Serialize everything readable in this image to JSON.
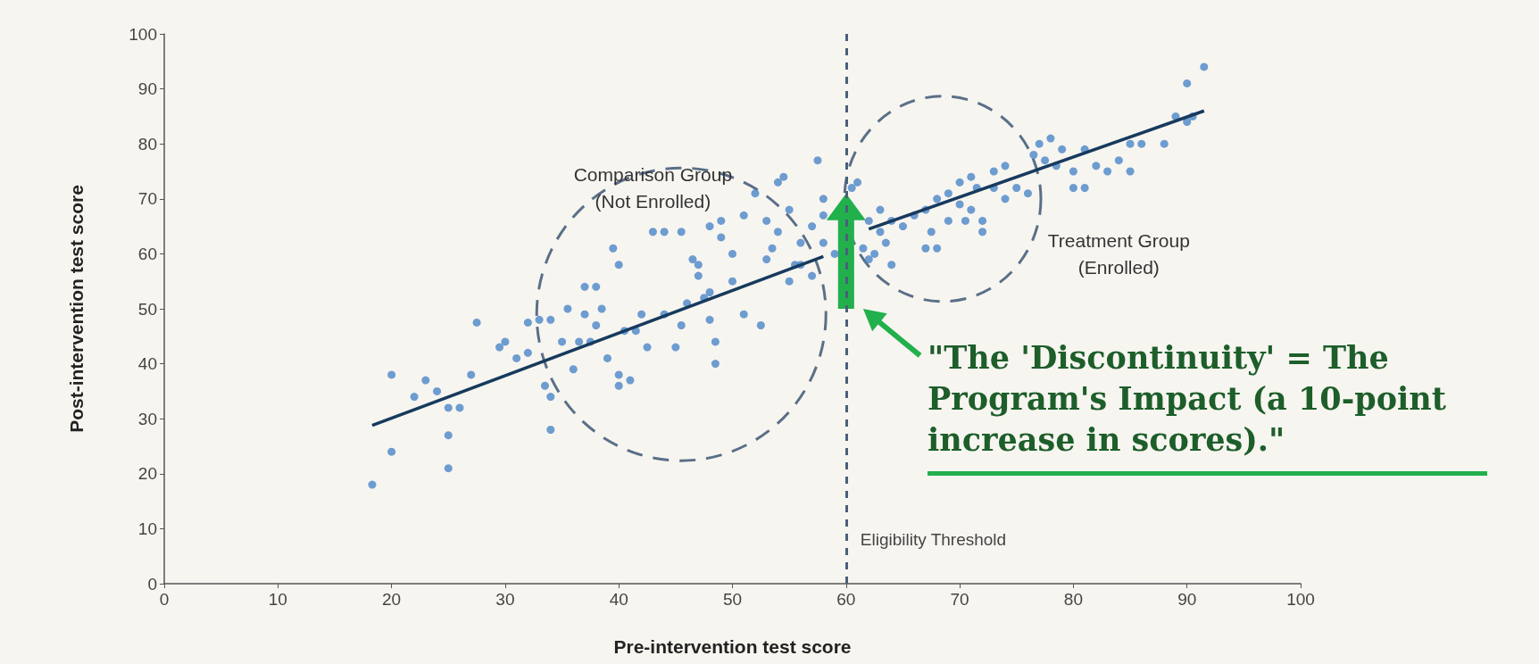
{
  "chart_data": {
    "type": "scatter",
    "xlabel": "Pre-intervention test score",
    "ylabel": "Post-intervention test score",
    "xlim": [
      0,
      100
    ],
    "xticks": [
      0,
      10,
      20,
      30,
      40,
      50,
      60,
      70,
      80,
      90,
      100
    ],
    "ylim": [
      0,
      100
    ],
    "yticks": [
      0,
      10,
      20,
      30,
      40,
      50,
      60,
      70,
      80,
      90,
      100
    ],
    "grid": false,
    "marker": "circle",
    "series": [
      {
        "color": "#4a86c8",
        "x": [
          18.3,
          20,
          20,
          22,
          23,
          24,
          25,
          25,
          25,
          26,
          27,
          27.5,
          29.5,
          30,
          31,
          32,
          32,
          33,
          33.5,
          34,
          34,
          34,
          35,
          35.5,
          36,
          36.5,
          37,
          37,
          37.5,
          38,
          38,
          38.5,
          39,
          39.5,
          40,
          40,
          40,
          40.5,
          41,
          41.5,
          42,
          42.5,
          43,
          44,
          44,
          45,
          45.5,
          45.5,
          46,
          46.5,
          47,
          47,
          47.5,
          48,
          48,
          48,
          48.5,
          48.5,
          49,
          49,
          50,
          50,
          51,
          51,
          52,
          52.5,
          53,
          53,
          53.5,
          54,
          54,
          54.5,
          55,
          55,
          55.5,
          56,
          56,
          57,
          57,
          57.5,
          58,
          58,
          59,
          58
        ],
        "values": [
          18,
          38,
          24,
          34,
          37,
          35,
          32,
          27,
          21,
          32,
          38,
          47.5,
          43,
          44,
          41,
          42,
          47.5,
          48,
          36,
          34,
          28,
          48,
          44,
          50,
          39,
          44,
          49,
          54,
          44,
          47,
          54,
          50,
          41,
          61,
          36,
          38,
          58,
          46,
          37,
          46,
          49,
          43,
          64,
          64,
          49,
          43,
          64,
          47,
          51,
          59,
          58,
          56,
          52,
          53,
          65,
          48,
          44,
          40,
          63,
          66,
          55,
          60,
          67,
          49,
          71,
          47,
          59,
          66,
          61,
          64,
          73,
          74,
          68,
          55,
          58,
          58,
          62,
          65,
          56,
          77,
          70,
          62,
          60,
          67
        ]
      },
      {
        "color": "#4a86c8",
        "x": [
          60.5,
          61,
          61.5,
          62,
          62,
          62.5,
          63,
          63,
          63.5,
          64,
          64,
          65,
          66,
          67,
          67,
          67.5,
          68,
          68,
          69,
          69,
          70,
          70,
          70.5,
          71,
          71,
          71.5,
          72,
          72,
          73,
          73,
          74,
          74,
          75,
          76,
          76.5,
          77,
          77.5,
          78,
          78.5,
          79,
          80,
          80,
          81,
          81,
          82,
          83,
          84,
          85,
          85,
          86,
          88,
          89,
          90,
          90,
          90.5,
          91.5
        ],
        "values": [
          72,
          73,
          61,
          59,
          66,
          60,
          64,
          68,
          62,
          66,
          58,
          65,
          67,
          68,
          61,
          64,
          70,
          61,
          66,
          71,
          69,
          73,
          66,
          74,
          68,
          72,
          64,
          66,
          72,
          75,
          70,
          76,
          72,
          71,
          78,
          80,
          77,
          81,
          76,
          79,
          72,
          75,
          72,
          79,
          76,
          75,
          77,
          80,
          75,
          80,
          80,
          85,
          84,
          91,
          85,
          94
        ]
      },
      {
        "type": "line",
        "marker": "none",
        "color": "#173a5e",
        "x": [
          18.3,
          58
        ],
        "values": [
          28.8,
          59.5
        ]
      },
      {
        "type": "line",
        "marker": "none",
        "color": "#173a5e",
        "x": [
          62,
          91.5
        ],
        "values": [
          64.5,
          86
        ]
      }
    ],
    "ref_lines": [
      {
        "axis": "x",
        "value": 60,
        "label": "Eligibility Threshold",
        "color": "#4a5f7a",
        "line_style": "dashed"
      }
    ],
    "annotations": [
      "Comparison Group\n(Not Enrolled)",
      "Treatment Group\n(Enrolled)",
      "\"The 'Discontinuity' = The Program's Impact (a 10-point increase in scores).\""
    ]
  }
}
